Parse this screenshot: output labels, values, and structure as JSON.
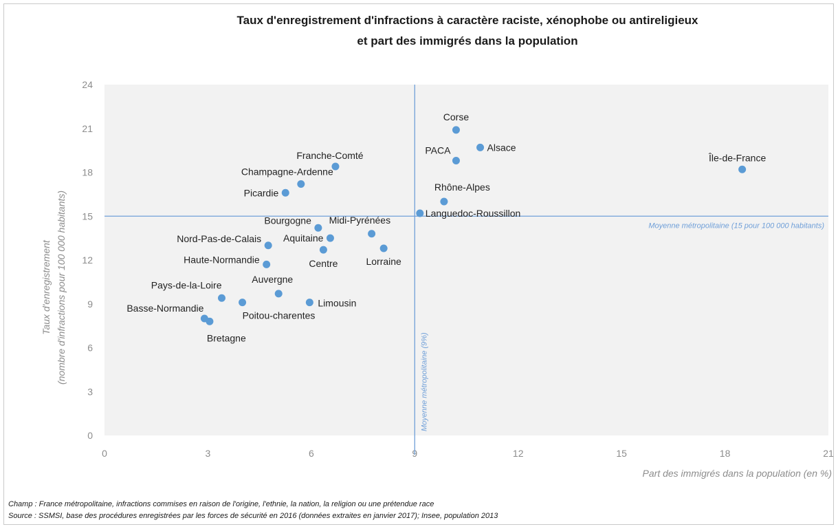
{
  "chart_data": {
    "type": "scatter",
    "title_line1": "Taux d'enregistrement d'infractions à caractère raciste, xénophobe ou antireligieux",
    "title_line2": "et part des immigrés dans la population",
    "xlabel": "Part des immigrés dans la population (en %)",
    "ylabel_line1": "Taux d'enregistrement",
    "ylabel_line2": "(nombre d'infractions pour 100 000 habitants)",
    "xlim": [
      0,
      21
    ],
    "ylim": [
      0,
      24
    ],
    "x_ticks": [
      0,
      3,
      6,
      9,
      12,
      15,
      18,
      21
    ],
    "y_ticks": [
      0,
      3,
      6,
      9,
      12,
      15,
      18,
      21,
      24
    ],
    "grid": false,
    "colors": {
      "points": "#5b9bd5",
      "reference_lines": "#6f9fd8",
      "axis_text": "#8c8c8c"
    },
    "reference_lines": {
      "horizontal": {
        "y": 15,
        "label": "Moyenne métropolitaine (15 pour 100 000 habitants)"
      },
      "vertical": {
        "x": 9,
        "label": "Moyenne métropolitaine (9%)"
      }
    },
    "points": [
      {
        "label": "Corse",
        "x": 10.2,
        "y": 20.9
      },
      {
        "label": "Alsace",
        "x": 10.9,
        "y": 19.7
      },
      {
        "label": "PACA",
        "x": 10.2,
        "y": 18.8
      },
      {
        "label": "Île-de-France",
        "x": 18.5,
        "y": 18.2
      },
      {
        "label": "Franche-Comté",
        "x": 6.7,
        "y": 18.4
      },
      {
        "label": "Champagne-Ardenne",
        "x": 5.7,
        "y": 17.2
      },
      {
        "label": "Picardie",
        "x": 5.25,
        "y": 16.6
      },
      {
        "label": "Rhône-Alpes",
        "x": 9.85,
        "y": 16.0
      },
      {
        "label": "Languedoc-Roussillon",
        "x": 9.15,
        "y": 15.2
      },
      {
        "label": "Bourgogne",
        "x": 6.2,
        "y": 14.2
      },
      {
        "label": "Midi-Pyrénées",
        "x": 7.75,
        "y": 13.8
      },
      {
        "label": "Aquitaine",
        "x": 6.55,
        "y": 13.5
      },
      {
        "label": "Nord-Pas-de-Calais",
        "x": 4.75,
        "y": 13.0
      },
      {
        "label": "Centre",
        "x": 6.35,
        "y": 12.7
      },
      {
        "label": "Lorraine",
        "x": 8.1,
        "y": 12.8
      },
      {
        "label": "Haute-Normandie",
        "x": 4.7,
        "y": 11.7
      },
      {
        "label": "Auvergne",
        "x": 5.05,
        "y": 9.7
      },
      {
        "label": "Pays-de-la-Loire",
        "x": 3.4,
        "y": 9.4
      },
      {
        "label": "Poitou-charentes",
        "x": 4.0,
        "y": 9.1
      },
      {
        "label": "Limousin",
        "x": 5.95,
        "y": 9.1
      },
      {
        "label": "Basse-Normandie",
        "x": 2.9,
        "y": 8.0
      },
      {
        "label": "Bretagne",
        "x": 3.05,
        "y": 7.8
      }
    ]
  },
  "notes": {
    "champ": "Champ : France métropolitaine, infractions commises en raison de l'origine, l'ethnie, la nation, la religion  ou une prétendue race",
    "source": "Source : SSMSI, base des procédures enregistrées par les forces de sécurité en 2016 (données extraites en janvier 2017); Insee, population 2013"
  }
}
